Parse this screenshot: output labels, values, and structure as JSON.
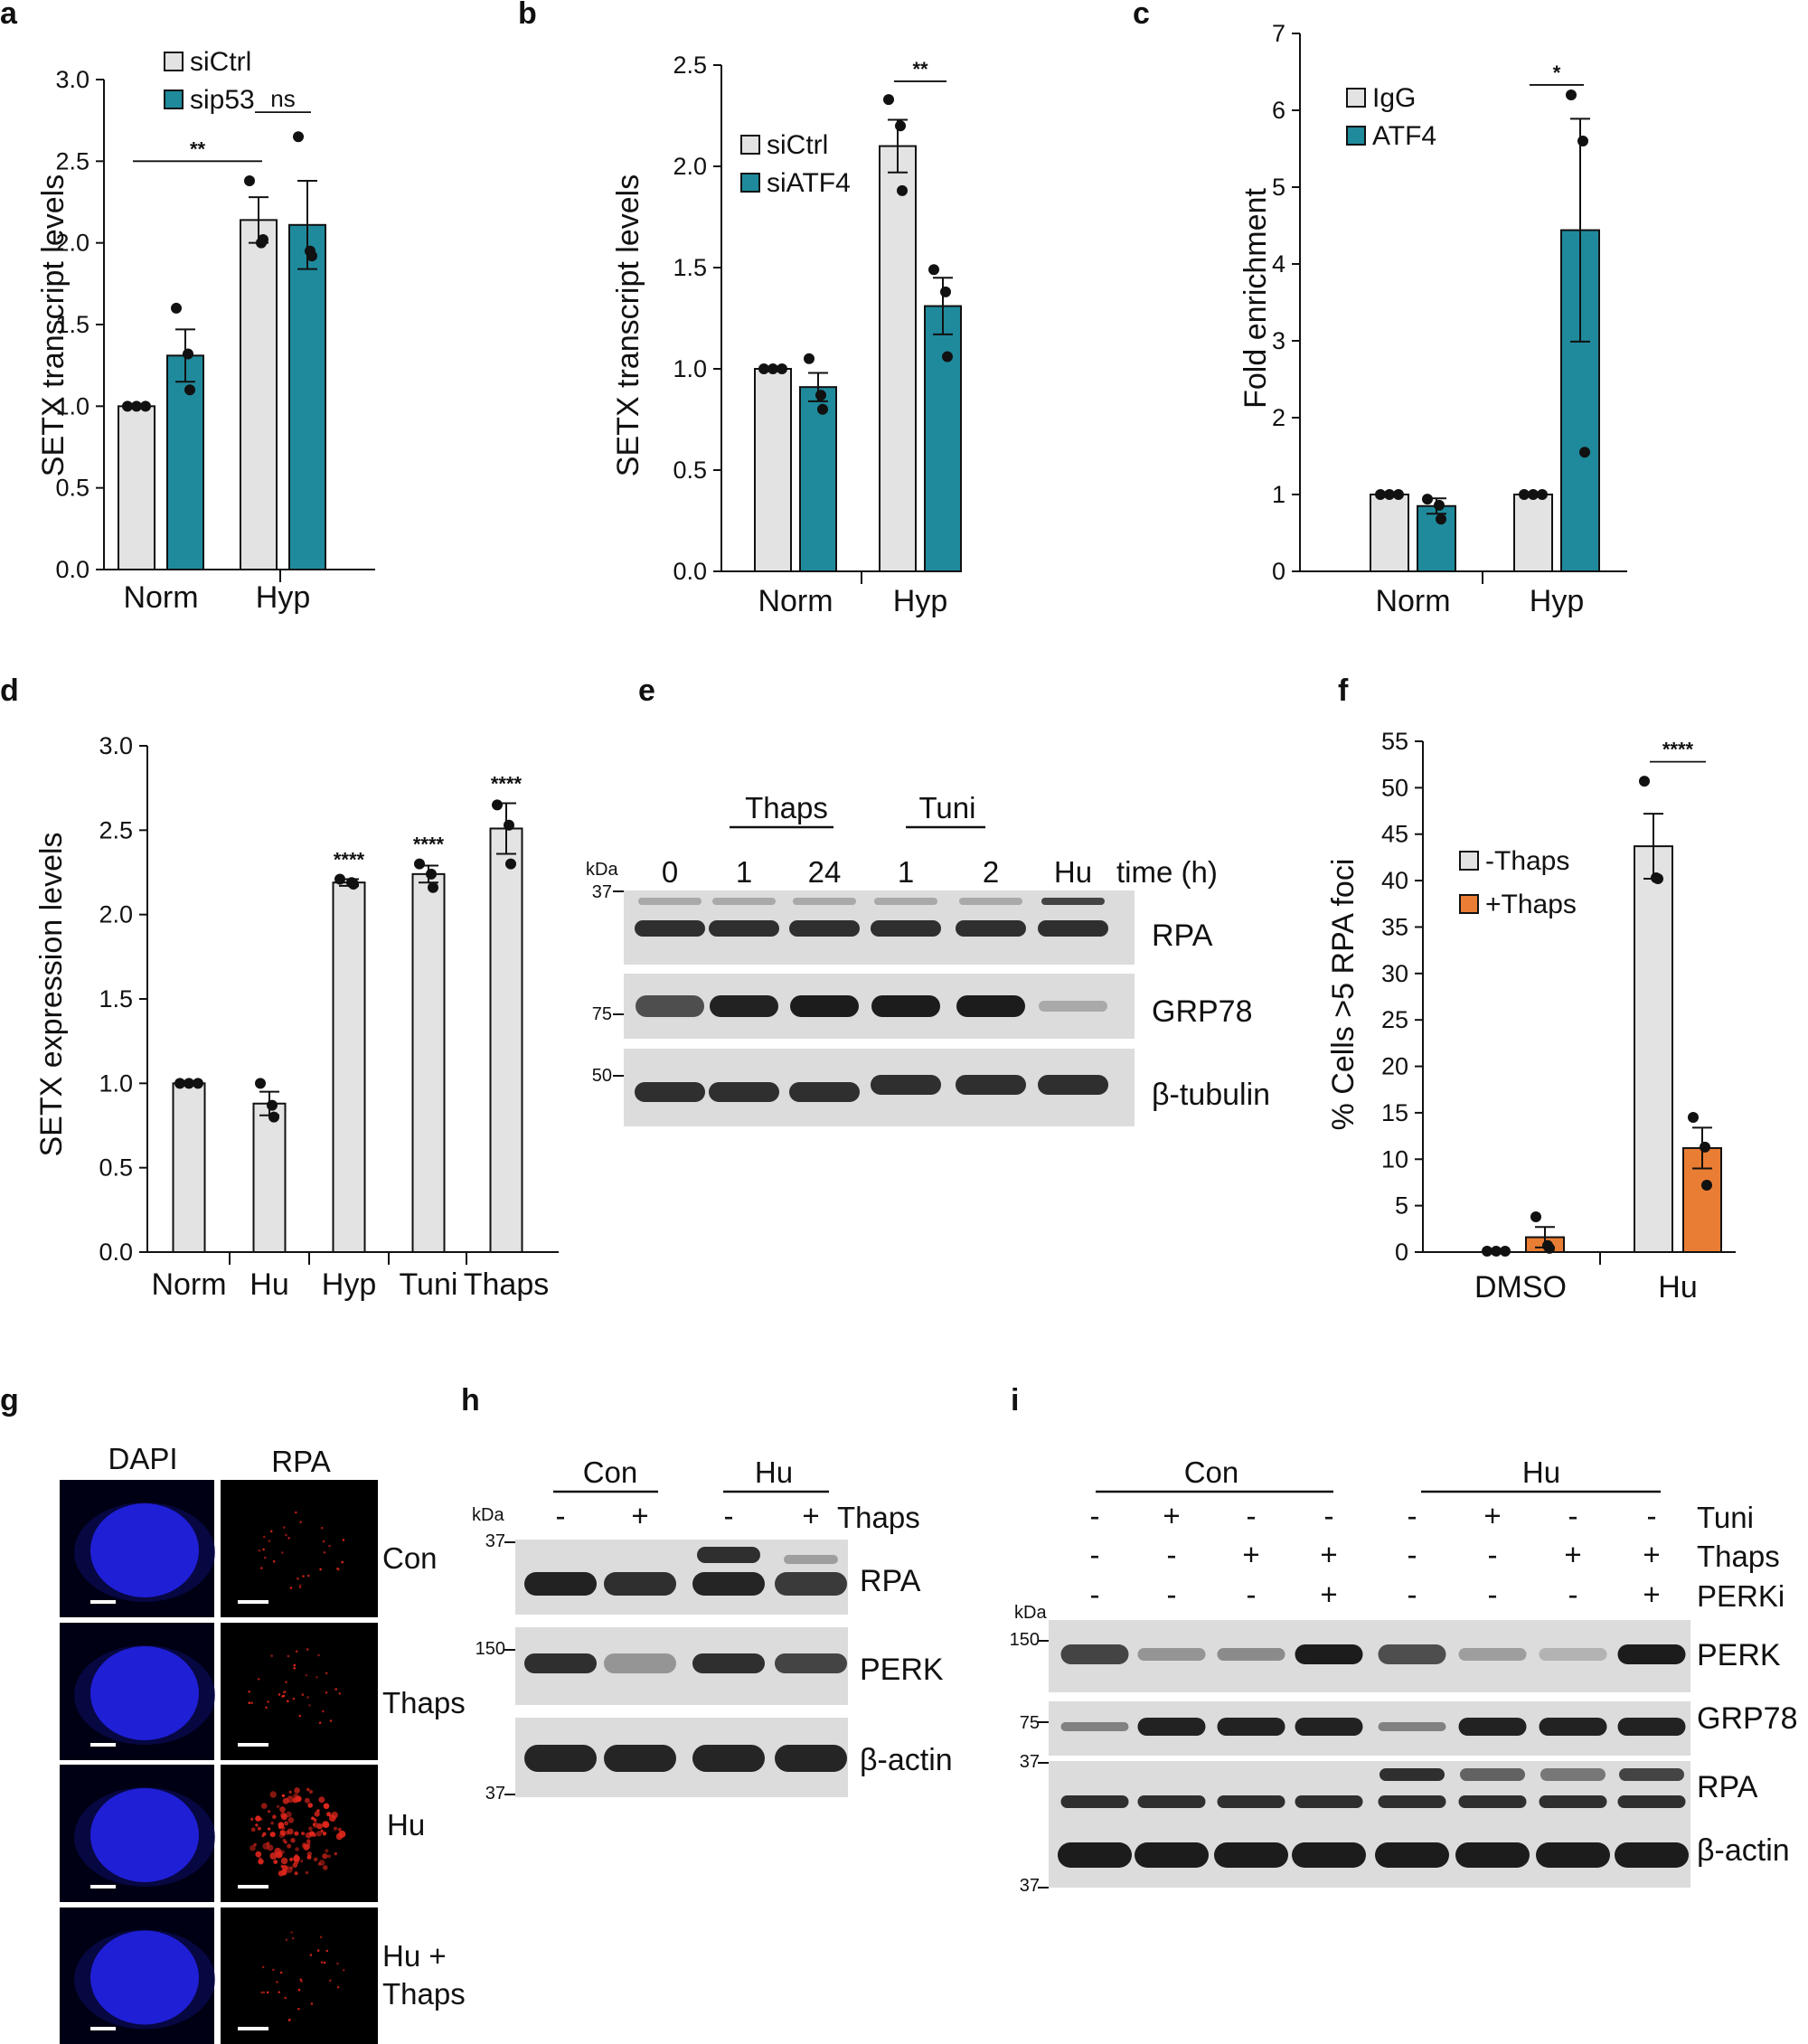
{
  "colors": {
    "ctrl": "#e3e3e3",
    "treat": "#1f8a9c",
    "orange": "#ea7d34",
    "dapi": "#1f1fd6",
    "rpa_dot": "#e0261c"
  },
  "chart_data": [
    {
      "panel": "a",
      "type": "bar",
      "ylabel": "SETX transcript levels",
      "ylim": [
        0,
        3.0
      ],
      "yticks": [
        "0.0",
        "0.5",
        "1.0",
        "1.5",
        "2.0",
        "2.5",
        "3.0"
      ],
      "categories": [
        "Norm",
        "Hyp"
      ],
      "legend": [
        "siCtrl",
        "sip53"
      ],
      "series": [
        {
          "name": "siCtrl",
          "color": "ctrl",
          "values": [
            1.0,
            2.14
          ],
          "err": [
            0.0,
            0.14
          ],
          "points": [
            [
              1.0,
              1.0,
              1.0
            ],
            [
              2.38,
              2.0,
              2.02
            ]
          ]
        },
        {
          "name": "sip53",
          "color": "treat",
          "values": [
            1.31,
            2.11
          ],
          "err": [
            0.16,
            0.27
          ],
          "points": [
            [
              1.6,
              1.32,
              1.1
            ],
            [
              2.65,
              1.95,
              1.92
            ]
          ]
        }
      ],
      "significance": [
        {
          "label": "**",
          "from": [
            0,
            0
          ],
          "to": [
            1,
            0
          ],
          "y": 2.5
        },
        {
          "label": "ns",
          "from": [
            1,
            0
          ],
          "to": [
            1,
            1
          ],
          "y": 2.8
        }
      ]
    },
    {
      "panel": "b",
      "type": "bar",
      "ylabel": "SETX transcript levels",
      "ylim": [
        0,
        2.5
      ],
      "yticks": [
        "0.0",
        "0.5",
        "1.0",
        "1.5",
        "2.0",
        "2.5"
      ],
      "categories": [
        "Norm",
        "Hyp"
      ],
      "legend": [
        "siCtrl",
        "siATF4"
      ],
      "series": [
        {
          "name": "siCtrl",
          "color": "ctrl",
          "values": [
            1.0,
            2.1
          ],
          "err": [
            0.0,
            0.13
          ],
          "points": [
            [
              1.0,
              1.0,
              1.0
            ],
            [
              2.33,
              2.2,
              1.88
            ]
          ]
        },
        {
          "name": "siATF4",
          "color": "treat",
          "values": [
            0.91,
            1.31
          ],
          "err": [
            0.07,
            0.14
          ],
          "points": [
            [
              1.05,
              0.87,
              0.8
            ],
            [
              1.49,
              1.38,
              1.06
            ]
          ]
        }
      ],
      "significance": [
        {
          "label": "**",
          "from": [
            1,
            0
          ],
          "to": [
            1,
            1
          ],
          "y": 2.42
        }
      ]
    },
    {
      "panel": "c",
      "type": "bar",
      "ylabel": "Fold enrichment",
      "ylim": [
        0,
        7
      ],
      "yticks": [
        "0",
        "1",
        "2",
        "3",
        "4",
        "5",
        "6",
        "7"
      ],
      "categories": [
        "Norm",
        "Hyp"
      ],
      "legend": [
        "IgG",
        "ATF4"
      ],
      "series": [
        {
          "name": "IgG",
          "color": "ctrl",
          "values": [
            1.0,
            1.0
          ],
          "err": [
            0.0,
            0.0
          ],
          "points": [
            [
              1.0,
              1.0,
              1.0
            ],
            [
              1.0,
              1.0,
              1.0
            ]
          ]
        },
        {
          "name": "ATF4",
          "color": "treat",
          "values": [
            0.85,
            4.44
          ],
          "err": [
            0.1,
            1.45
          ],
          "points": [
            [
              0.94,
              0.86,
              0.68
            ],
            [
              6.2,
              5.6,
              1.55
            ]
          ]
        }
      ],
      "significance": [
        {
          "label": "*",
          "from": [
            1,
            0
          ],
          "to": [
            1,
            1
          ],
          "y": 6.33
        }
      ]
    },
    {
      "panel": "d",
      "type": "bar",
      "ylabel": "SETX expression levels",
      "ylim": [
        0,
        3.0
      ],
      "yticks": [
        "0.0",
        "0.5",
        "1.0",
        "1.5",
        "2.0",
        "2.5",
        "3.0"
      ],
      "categories": [
        "Norm",
        "Hu",
        "Hyp",
        "Tuni",
        "Thaps"
      ],
      "legend": [],
      "series": [
        {
          "name": "",
          "color": "ctrl",
          "values": [
            1.0,
            0.88,
            2.19,
            2.24,
            2.51
          ],
          "err": [
            0.0,
            0.07,
            0.02,
            0.05,
            0.15
          ],
          "points": [
            [
              1.0,
              1.0,
              1.0
            ],
            [
              1.0,
              0.87,
              0.8
            ],
            [
              2.21,
              2.19,
              2.18
            ],
            [
              2.3,
              2.24,
              2.16
            ],
            [
              2.65,
              2.53,
              2.3
            ]
          ]
        }
      ],
      "bar_labels": [
        "",
        "",
        "****",
        "****",
        "****"
      ]
    },
    {
      "panel": "f",
      "type": "bar",
      "ylabel": "% Cells >5 RPA foci",
      "ylim": [
        0,
        55
      ],
      "yticks": [
        "0",
        "5",
        "10",
        "15",
        "20",
        "25",
        "30",
        "35",
        "40",
        "45",
        "50",
        "55"
      ],
      "categories": [
        "DMSO",
        "Hu"
      ],
      "legend": [
        "-Thaps",
        "+Thaps"
      ],
      "series": [
        {
          "name": "-Thaps",
          "color": "ctrl",
          "values": [
            0.0,
            43.7
          ],
          "err": [
            0.0,
            3.5
          ],
          "points": [
            [
              0.1,
              0.1,
              0.1
            ],
            [
              50.7,
              40.3,
              40.2
            ]
          ]
        },
        {
          "name": "+Thaps",
          "color": "orange",
          "values": [
            1.6,
            11.2
          ],
          "err": [
            1.1,
            2.2
          ],
          "points": [
            [
              3.8,
              0.7,
              0.4
            ],
            [
              14.5,
              11.3,
              7.2
            ]
          ]
        }
      ],
      "significance": [
        {
          "label": "****",
          "from": [
            1,
            0
          ],
          "to": [
            1,
            1
          ],
          "y": 52.8
        }
      ]
    }
  ],
  "panel_labels": [
    "a",
    "b",
    "c",
    "d",
    "e",
    "f",
    "g",
    "h",
    "i"
  ],
  "panel_e": {
    "group_labels": [
      "Thaps",
      "Tuni"
    ],
    "time_header": "time (h)",
    "kda": "kDa",
    "lanes": [
      "0",
      "1",
      "24",
      "1",
      "2",
      "Hu"
    ],
    "proteins": [
      "RPA",
      "GRP78",
      "β-tubulin"
    ],
    "markers": [
      "37",
      "75",
      "50"
    ]
  },
  "panel_g": {
    "columns": [
      "DAPI",
      "RPA"
    ],
    "rows": [
      "Con",
      "Thaps",
      "Hu",
      "Hu +\nThaps"
    ],
    "rpa_foci_level": [
      0.15,
      0.2,
      1.0,
      0.15
    ]
  },
  "panel_h": {
    "groups": [
      "Con",
      "Hu"
    ],
    "treatment": "Thaps",
    "signs": [
      "-",
      "+",
      "-",
      "+"
    ],
    "kda": "kDa",
    "proteins": [
      "RPA",
      "PERK",
      "β-actin"
    ],
    "markers": [
      "37",
      "150",
      "37"
    ]
  },
  "panel_i": {
    "groups": [
      "Con",
      "Hu"
    ],
    "kda": "kDa",
    "rows": [
      {
        "label": "Tuni",
        "signs": [
          "-",
          "+",
          "-",
          "-",
          "-",
          "+",
          "-",
          "-"
        ]
      },
      {
        "label": "Thaps",
        "signs": [
          "-",
          "-",
          "+",
          "+",
          "-",
          "-",
          "+",
          "+"
        ]
      },
      {
        "label": "PERKi",
        "signs": [
          "-",
          "-",
          "-",
          "+",
          "-",
          "-",
          "-",
          "+"
        ]
      }
    ],
    "proteins": [
      "PERK",
      "GRP78",
      "RPA",
      "β-actin"
    ],
    "markers": [
      "150",
      "75",
      "37",
      "37"
    ]
  }
}
